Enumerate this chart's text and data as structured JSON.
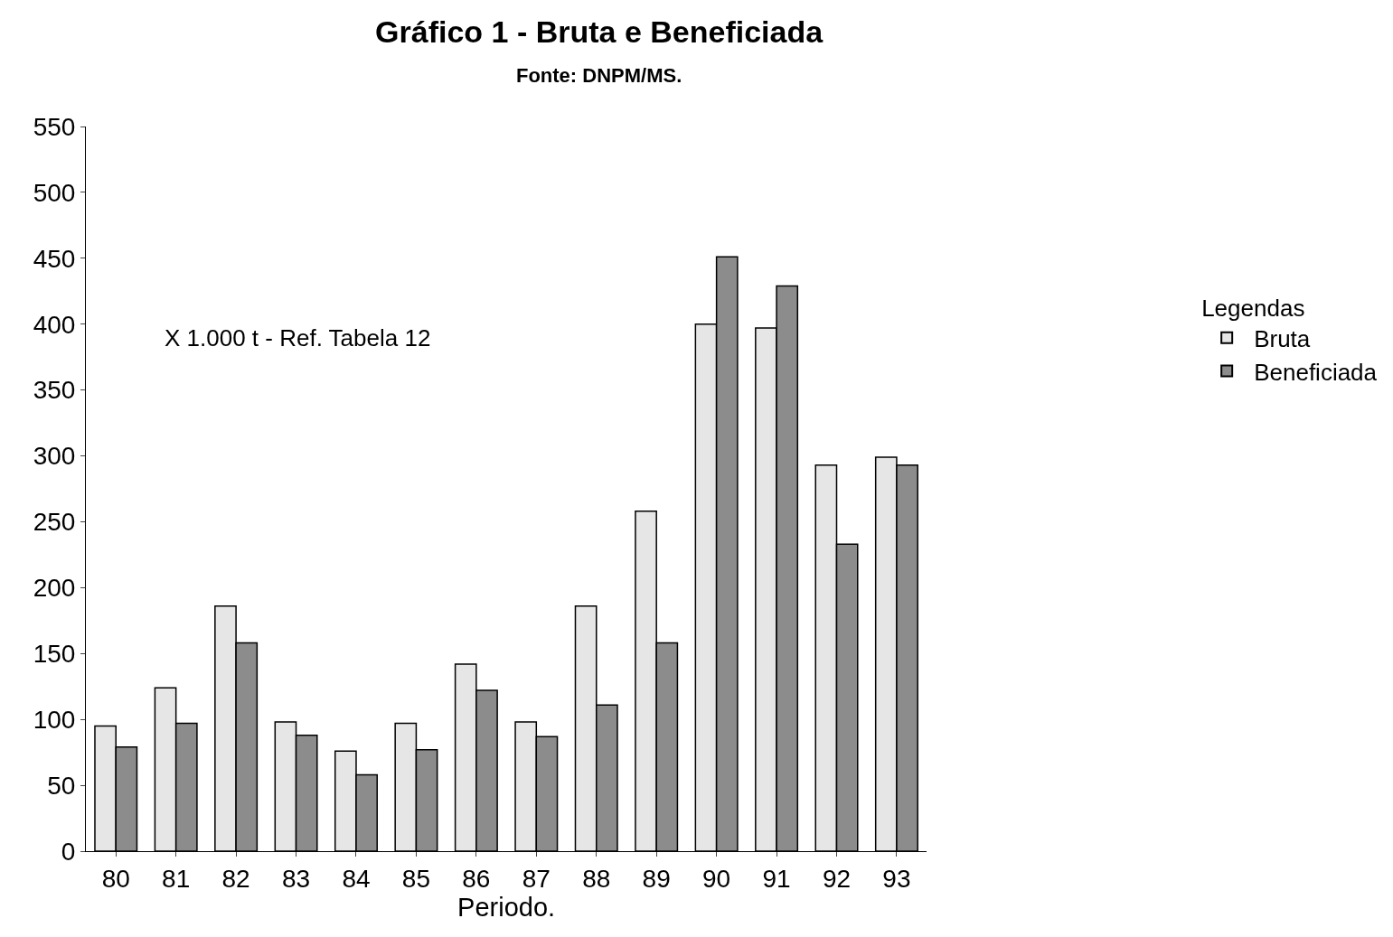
{
  "chart_data": {
    "type": "bar",
    "title": "Gráfico 1 - Bruta e Beneficiada",
    "subtitle": "Fonte: DNPM/MS.",
    "xlabel": "Periodo.",
    "legend_title": "Legendas",
    "annotations": [
      "X 1.000 t - Ref. Tabela 12"
    ],
    "categories": [
      "80",
      "81",
      "82",
      "83",
      "84",
      "85",
      "86",
      "87",
      "88",
      "89",
      "90",
      "91",
      "92",
      "93"
    ],
    "series": [
      {
        "name": "Bruta",
        "color": "#e6e6e6",
        "values": [
          95,
          124,
          186,
          98,
          76,
          97,
          142,
          98,
          186,
          258,
          400,
          397,
          293,
          299
        ]
      },
      {
        "name": "Beneficiada",
        "color": "#8c8c8c",
        "values": [
          79,
          97,
          158,
          88,
          58,
          77,
          122,
          87,
          111,
          158,
          451,
          429,
          233,
          293
        ]
      }
    ],
    "ylim": [
      0,
      550
    ],
    "yticks": [
      0,
      50,
      100,
      150,
      200,
      250,
      300,
      350,
      400,
      450,
      500,
      550
    ],
    "legend": "right"
  }
}
